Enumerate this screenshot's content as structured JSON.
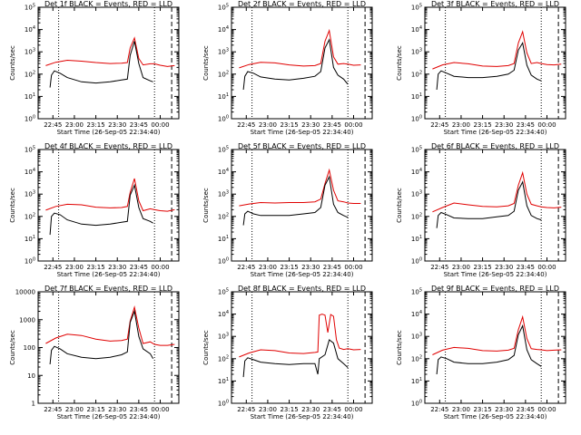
{
  "chart_data": [
    {
      "type": "line",
      "title": "Det 1f BLACK = Events, RED = LLD",
      "xlabel": "Start Time (26-Sep-05 22:34:40)",
      "ylabel": "Counts/sec",
      "yscale": "log",
      "ylim": [
        1,
        100000
      ],
      "ytick_labels": [
        "10^0",
        "10^1",
        "10^2",
        "10^3",
        "10^4",
        "10^5"
      ],
      "x_ticks": [
        "22:45",
        "23:00",
        "23:15",
        "23:30",
        "23:45",
        "00:00"
      ],
      "xlim": [
        "22:34:40",
        "00:13"
      ],
      "vlines": [
        "22:49",
        "23:56",
        "00:08"
      ],
      "series": [
        {
          "name": "LLD",
          "color": "#e00000",
          "x": [
            "22:40",
            "22:47",
            "22:55",
            "23:05",
            "23:15",
            "23:25",
            "23:33",
            "23:37",
            "23:39",
            "23:42",
            "23:45",
            "23:48",
            "23:53",
            "23:56",
            "24:00",
            "24:05",
            "24:10"
          ],
          "y": [
            240,
            340,
            420,
            380,
            330,
            300,
            310,
            330,
            1500,
            4200,
            500,
            260,
            290,
            290,
            250,
            220,
            240
          ]
        },
        {
          "name": "Events",
          "color": "#000000",
          "x": [
            "22:43",
            "22:44",
            "22:46",
            "22:50",
            "22:55",
            "23:05",
            "23:15",
            "23:25",
            "23:33",
            "23:37",
            "23:39",
            "23:42",
            "23:45",
            "23:48",
            "23:53",
            "23:55"
          ],
          "y": [
            25,
            90,
            140,
            110,
            70,
            45,
            40,
            45,
            55,
            60,
            700,
            3000,
            300,
            70,
            50,
            45
          ]
        }
      ]
    },
    {
      "type": "line",
      "title": "Det 2f BLACK = Events, RED = LLD",
      "xlabel": "Start Time (26-Sep-05 22:34:40)",
      "ylabel": "Counts/sec",
      "yscale": "log",
      "ylim": [
        1,
        100000
      ],
      "ytick_labels": [
        "10^0",
        "10^1",
        "10^2",
        "10^3",
        "10^4",
        "10^5"
      ],
      "x_ticks": [
        "22:45",
        "23:00",
        "23:15",
        "23:30",
        "23:45",
        "00:00"
      ],
      "xlim": [
        "22:34:40",
        "00:13"
      ],
      "vlines": [
        "22:49",
        "23:56",
        "00:08"
      ],
      "series": [
        {
          "name": "LLD",
          "color": "#e00000",
          "x": [
            "22:40",
            "22:47",
            "22:55",
            "23:05",
            "23:15",
            "23:25",
            "23:33",
            "23:37",
            "23:40",
            "23:43",
            "23:46",
            "23:49",
            "23:53",
            "23:56",
            "24:00",
            "24:05"
          ],
          "y": [
            190,
            270,
            340,
            320,
            260,
            230,
            240,
            300,
            3000,
            9000,
            600,
            280,
            300,
            280,
            250,
            260
          ]
        },
        {
          "name": "Events",
          "color": "#000000",
          "x": [
            "22:43",
            "22:44",
            "22:46",
            "22:50",
            "22:55",
            "23:05",
            "23:15",
            "23:25",
            "23:33",
            "23:37",
            "23:40",
            "23:43",
            "23:46",
            "23:49",
            "23:53",
            "23:56"
          ],
          "y": [
            20,
            80,
            130,
            110,
            75,
            60,
            55,
            65,
            80,
            130,
            1500,
            3500,
            200,
            90,
            60,
            35
          ]
        }
      ]
    },
    {
      "type": "line",
      "title": "Det 3f BLACK = Events, RED = LLD",
      "xlabel": "Start Time (26-Sep-05 22:34:40)",
      "ylabel": "Counts/sec",
      "yscale": "log",
      "ylim": [
        1,
        100000
      ],
      "ytick_labels": [
        "10^0",
        "10^1",
        "10^2",
        "10^3",
        "10^4",
        "10^5"
      ],
      "x_ticks": [
        "22:45",
        "23:00",
        "23:15",
        "23:30",
        "23:45",
        "00:00"
      ],
      "xlim": [
        "22:34:40",
        "00:13"
      ],
      "vlines": [
        "22:49",
        "23:56",
        "00:08"
      ],
      "series": [
        {
          "name": "LLD",
          "color": "#e00000",
          "x": [
            "22:40",
            "22:47",
            "22:55",
            "23:05",
            "23:15",
            "23:25",
            "23:33",
            "23:37",
            "23:40",
            "23:43",
            "23:46",
            "23:49",
            "23:53",
            "23:56",
            "24:00",
            "24:05",
            "24:10"
          ],
          "y": [
            170,
            260,
            330,
            290,
            230,
            220,
            240,
            300,
            2500,
            8000,
            900,
            300,
            330,
            300,
            270,
            260,
            280
          ]
        },
        {
          "name": "Events",
          "color": "#000000",
          "x": [
            "22:43",
            "22:44",
            "22:46",
            "22:50",
            "22:55",
            "23:05",
            "23:15",
            "23:25",
            "23:33",
            "23:37",
            "23:40",
            "23:43",
            "23:46",
            "23:49",
            "23:53",
            "23:56"
          ],
          "y": [
            20,
            100,
            140,
            110,
            80,
            70,
            70,
            80,
            100,
            150,
            1200,
            2500,
            250,
            90,
            60,
            50
          ]
        }
      ]
    },
    {
      "type": "line",
      "title": "Det 4f BLACK = Events, RED = LLD",
      "xlabel": "Start Time (26-Sep-05 22:34:40)",
      "ylabel": "Counts/sec",
      "yscale": "log",
      "ylim": [
        1,
        100000
      ],
      "ytick_labels": [
        "10^0",
        "10^1",
        "10^2",
        "10^3",
        "10^4",
        "10^5"
      ],
      "x_ticks": [
        "22:45",
        "23:00",
        "23:15",
        "23:30",
        "23:45",
        "00:00"
      ],
      "xlim": [
        "22:34:40",
        "00:13"
      ],
      "vlines": [
        "22:49",
        "23:56",
        "00:08"
      ],
      "series": [
        {
          "name": "LLD",
          "color": "#e00000",
          "x": [
            "22:40",
            "22:47",
            "22:55",
            "23:05",
            "23:15",
            "23:25",
            "23:33",
            "23:37",
            "23:39",
            "23:42",
            "23:45",
            "23:48",
            "23:53",
            "23:56",
            "24:00",
            "24:05",
            "24:10"
          ],
          "y": [
            190,
            280,
            350,
            330,
            260,
            240,
            250,
            280,
            1200,
            5000,
            500,
            180,
            220,
            200,
            180,
            170,
            200
          ]
        },
        {
          "name": "Events",
          "color": "#000000",
          "x": [
            "22:43",
            "22:44",
            "22:46",
            "22:50",
            "22:55",
            "23:05",
            "23:15",
            "23:25",
            "23:33",
            "23:37",
            "23:39",
            "23:42",
            "23:45",
            "23:48",
            "23:53",
            "23:55"
          ],
          "y": [
            15,
            100,
            140,
            120,
            70,
            45,
            40,
            45,
            55,
            60,
            900,
            2500,
            250,
            80,
            60,
            50
          ]
        }
      ]
    },
    {
      "type": "line",
      "title": "Det 5f BLACK = Events, RED = LLD",
      "xlabel": "Start Time (26-Sep-05 22:34:40)",
      "ylabel": "Counts/sec",
      "yscale": "log",
      "ylim": [
        1,
        100000
      ],
      "ytick_labels": [
        "10^0",
        "10^1",
        "10^2",
        "10^3",
        "10^4",
        "10^5"
      ],
      "x_ticks": [
        "22:45",
        "23:00",
        "23:15",
        "23:30",
        "23:45",
        "00:00"
      ],
      "xlim": [
        "22:34:40",
        "00:13"
      ],
      "vlines": [
        "22:49",
        "23:56",
        "00:08"
      ],
      "series": [
        {
          "name": "LLD",
          "color": "#e00000",
          "x": [
            "22:40",
            "22:47",
            "22:55",
            "23:05",
            "23:15",
            "23:25",
            "23:33",
            "23:37",
            "23:40",
            "23:43",
            "23:46",
            "23:49",
            "23:53",
            "23:56",
            "24:00",
            "24:05"
          ],
          "y": [
            300,
            360,
            420,
            400,
            420,
            420,
            450,
            600,
            3000,
            12000,
            1500,
            500,
            450,
            400,
            380,
            380
          ]
        },
        {
          "name": "Events",
          "color": "#000000",
          "x": [
            "22:43",
            "22:44",
            "22:46",
            "22:50",
            "22:55",
            "23:05",
            "23:15",
            "23:25",
            "23:33",
            "23:37",
            "23:40",
            "23:43",
            "23:46",
            "23:49",
            "23:53",
            "23:56"
          ],
          "y": [
            40,
            130,
            170,
            130,
            110,
            110,
            110,
            130,
            150,
            250,
            2500,
            6000,
            350,
            150,
            110,
            90
          ]
        }
      ]
    },
    {
      "type": "line",
      "title": "Det 6f BLACK = Events, RED = LLD",
      "xlabel": "Start Time (26-Sep-05 22:34:40)",
      "ylabel": "Counts/sec",
      "yscale": "log",
      "ylim": [
        1,
        100000
      ],
      "ytick_labels": [
        "10^0",
        "10^1",
        "10^2",
        "10^3",
        "10^4",
        "10^5"
      ],
      "x_ticks": [
        "22:45",
        "23:00",
        "23:15",
        "23:30",
        "23:45",
        "00:00"
      ],
      "xlim": [
        "22:34:40",
        "00:13"
      ],
      "vlines": [
        "22:49",
        "23:56",
        "00:08"
      ],
      "series": [
        {
          "name": "LLD",
          "color": "#e00000",
          "x": [
            "22:40",
            "22:47",
            "22:55",
            "23:05",
            "23:15",
            "23:25",
            "23:33",
            "23:37",
            "23:40",
            "23:43",
            "23:46",
            "23:49",
            "23:53",
            "23:56",
            "24:00",
            "24:05",
            "24:10"
          ],
          "y": [
            160,
            250,
            400,
            330,
            280,
            270,
            300,
            380,
            2500,
            9000,
            1000,
            350,
            300,
            270,
            250,
            240,
            260
          ]
        },
        {
          "name": "Events",
          "color": "#000000",
          "x": [
            "22:43",
            "22:44",
            "22:46",
            "22:50",
            "22:55",
            "23:05",
            "23:15",
            "23:25",
            "23:33",
            "23:37",
            "23:40",
            "23:43",
            "23:46",
            "23:49",
            "23:53",
            "23:56"
          ],
          "y": [
            30,
            110,
            150,
            120,
            85,
            80,
            80,
            95,
            110,
            170,
            1500,
            3500,
            300,
            110,
            80,
            70
          ]
        }
      ]
    },
    {
      "type": "line",
      "title": "Det 7f BLACK = Events, RED = LLD",
      "xlabel": "Start Time (26-Sep-05 22:34:40)",
      "ylabel": "Counts/sec",
      "yscale": "log",
      "ylim": [
        1,
        10000
      ],
      "ytick_labels": [
        "1",
        "10",
        "100",
        "1000",
        "10000"
      ],
      "x_ticks": [
        "22:45",
        "23:00",
        "23:15",
        "23:30",
        "23:45",
        "00:00"
      ],
      "xlim": [
        "22:34:40",
        "00:13"
      ],
      "vlines": [
        "22:49",
        "23:56",
        "00:08"
      ],
      "series": [
        {
          "name": "LLD",
          "color": "#e00000",
          "x": [
            "22:40",
            "22:47",
            "22:55",
            "23:05",
            "23:15",
            "23:25",
            "23:33",
            "23:37",
            "23:39",
            "23:42",
            "23:45",
            "23:48",
            "23:53",
            "23:56",
            "24:00",
            "24:05",
            "24:10"
          ],
          "y": [
            140,
            220,
            300,
            270,
            200,
            170,
            180,
            200,
            900,
            2800,
            500,
            140,
            160,
            130,
            120,
            120,
            130
          ]
        },
        {
          "name": "Events",
          "color": "#000000",
          "x": [
            "22:43",
            "22:44",
            "22:46",
            "22:50",
            "22:55",
            "23:05",
            "23:15",
            "23:25",
            "23:33",
            "23:37",
            "23:39",
            "23:42",
            "23:45",
            "23:48",
            "23:53",
            "23:55"
          ],
          "y": [
            25,
            80,
            110,
            90,
            60,
            45,
            40,
            45,
            55,
            70,
            800,
            2000,
            250,
            90,
            60,
            40
          ]
        }
      ]
    },
    {
      "type": "line",
      "title": "Det 8f BLACK = Events, RED = LLD",
      "xlabel": "Start Time (26-Sep-05 22:34:40)",
      "ylabel": "Counts/sec",
      "yscale": "log",
      "ylim": [
        1,
        100000
      ],
      "ytick_labels": [
        "10^0",
        "10^1",
        "10^2",
        "10^3",
        "10^4",
        "10^5"
      ],
      "x_ticks": [
        "22:45",
        "23:00",
        "23:15",
        "23:30",
        "23:45",
        "00:00"
      ],
      "xlim": [
        "22:34:40",
        "00:13"
      ],
      "vlines": [
        "22:49",
        "23:56",
        "00:08"
      ],
      "series": [
        {
          "name": "LLD",
          "color": "#e00000",
          "x": [
            "22:40",
            "22:47",
            "22:55",
            "23:05",
            "23:15",
            "23:25",
            "23:33",
            "23:35",
            "23:36",
            "23:38",
            "23:40",
            "23:42",
            "23:44",
            "23:46",
            "23:48",
            "23:50",
            "23:53",
            "23:56",
            "24:00",
            "24:05"
          ],
          "y": [
            120,
            180,
            250,
            230,
            180,
            170,
            190,
            200,
            9000,
            10000,
            9000,
            1500,
            9500,
            8000,
            700,
            300,
            260,
            280,
            250,
            260
          ]
        },
        {
          "name": "Events",
          "color": "#000000",
          "x": [
            "22:43",
            "22:44",
            "22:46",
            "22:50",
            "22:55",
            "23:05",
            "23:15",
            "23:25",
            "23:33",
            "23:35",
            "23:36",
            "23:40",
            "23:43",
            "23:46",
            "23:49",
            "23:53",
            "23:56"
          ],
          "y": [
            15,
            80,
            110,
            90,
            70,
            60,
            55,
            60,
            60,
            20,
            100,
            150,
            700,
            500,
            100,
            60,
            40
          ]
        }
      ]
    },
    {
      "type": "line",
      "title": "Det 9f BLACK = Events, RED = LLD",
      "xlabel": "Start Time (26-Sep-05 22:34:40)",
      "ylabel": "Counts/sec",
      "yscale": "log",
      "ylim": [
        1,
        100000
      ],
      "ytick_labels": [
        "10^0",
        "10^1",
        "10^2",
        "10^3",
        "10^4",
        "10^5"
      ],
      "x_ticks": [
        "22:45",
        "23:00",
        "23:15",
        "23:30",
        "23:45",
        "00:00"
      ],
      "xlim": [
        "22:34:40",
        "00:13"
      ],
      "vlines": [
        "22:49",
        "23:56",
        "00:08"
      ],
      "series": [
        {
          "name": "LLD",
          "color": "#e00000",
          "x": [
            "22:40",
            "22:47",
            "22:55",
            "23:05",
            "23:15",
            "23:25",
            "23:33",
            "23:37",
            "23:40",
            "23:43",
            "23:46",
            "23:49",
            "23:53",
            "23:56",
            "24:00",
            "24:05",
            "24:10"
          ],
          "y": [
            150,
            240,
            320,
            290,
            230,
            220,
            240,
            290,
            2000,
            7500,
            800,
            280,
            260,
            250,
            230,
            240,
            250
          ]
        },
        {
          "name": "Events",
          "color": "#000000",
          "x": [
            "22:43",
            "22:44",
            "22:46",
            "22:50",
            "22:55",
            "23:05",
            "23:15",
            "23:25",
            "23:33",
            "23:37",
            "23:40",
            "23:43",
            "23:46",
            "23:49",
            "23:53",
            "23:56"
          ],
          "y": [
            20,
            90,
            120,
            100,
            70,
            60,
            60,
            70,
            90,
            140,
            1200,
            3000,
            250,
            90,
            60,
            45
          ]
        }
      ]
    }
  ]
}
